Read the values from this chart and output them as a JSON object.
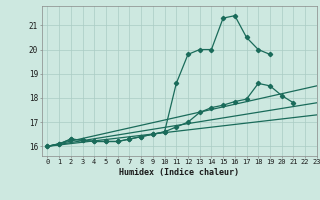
{
  "xlabel": "Humidex (Indice chaleur)",
  "xlim": [
    -0.5,
    23
  ],
  "ylim": [
    15.6,
    21.8
  ],
  "yticks": [
    16,
    17,
    18,
    19,
    20,
    21
  ],
  "xticks": [
    0,
    1,
    2,
    3,
    4,
    5,
    6,
    7,
    8,
    9,
    10,
    11,
    12,
    13,
    14,
    15,
    16,
    17,
    18,
    19,
    20,
    21,
    22,
    23
  ],
  "bg_color": "#cde8e0",
  "line_color": "#1a6b5a",
  "grid_color": "#aaccc4",
  "lines": [
    {
      "x": [
        0,
        1,
        2,
        3,
        4,
        5,
        6,
        7,
        8,
        9,
        10,
        11,
        12,
        13,
        14,
        15,
        16,
        17,
        18,
        19
      ],
      "y": [
        16.0,
        16.1,
        16.3,
        16.25,
        16.2,
        16.2,
        16.2,
        16.3,
        16.4,
        16.5,
        16.6,
        18.6,
        19.8,
        20.0,
        20.0,
        21.3,
        21.4,
        20.5,
        20.0,
        19.8
      ],
      "has_markers": true
    },
    {
      "x": [
        0,
        1,
        2,
        3,
        4,
        5,
        6,
        7,
        8,
        9,
        10,
        11,
        12,
        13,
        14,
        15,
        16,
        17,
        18,
        19,
        20,
        21
      ],
      "y": [
        16.0,
        16.1,
        16.3,
        16.25,
        16.2,
        16.2,
        16.2,
        16.3,
        16.4,
        16.5,
        16.6,
        16.8,
        17.0,
        17.4,
        17.6,
        17.7,
        17.85,
        17.95,
        18.6,
        18.5,
        18.1,
        17.8
      ],
      "has_markers": true
    },
    {
      "x": [
        0,
        23
      ],
      "y": [
        16.0,
        18.5
      ],
      "has_markers": false
    },
    {
      "x": [
        0,
        23
      ],
      "y": [
        16.0,
        17.8
      ],
      "has_markers": false
    },
    {
      "x": [
        0,
        23
      ],
      "y": [
        16.0,
        17.3
      ],
      "has_markers": false
    }
  ]
}
